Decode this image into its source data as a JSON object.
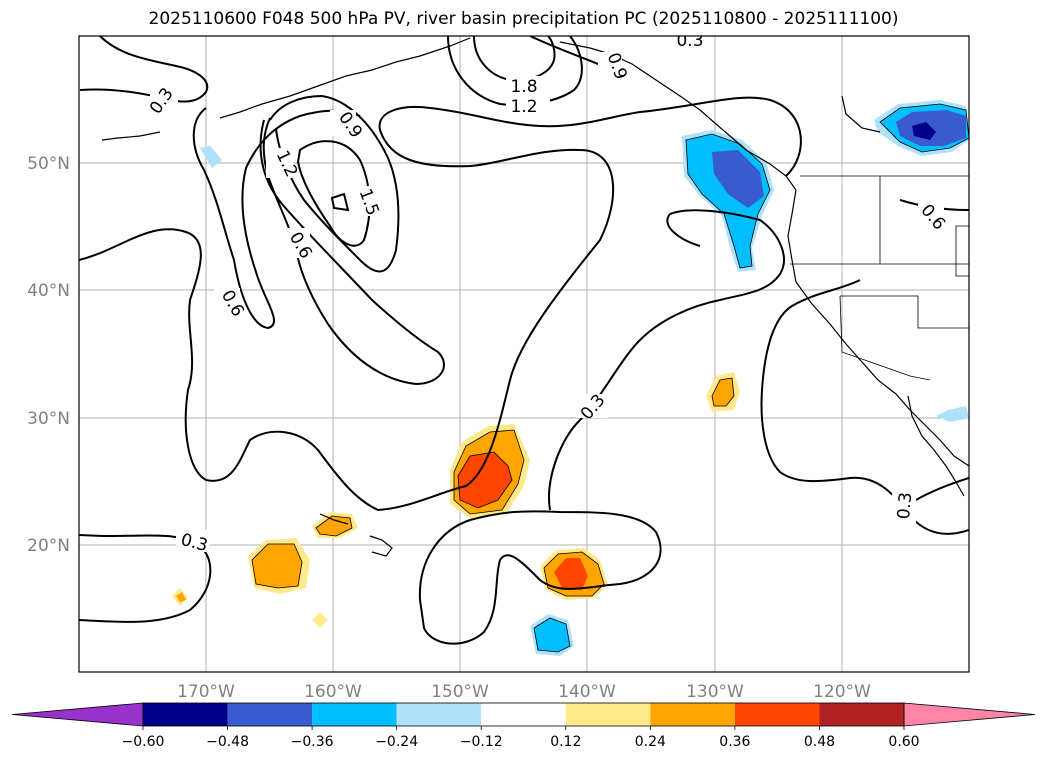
{
  "title": "2025110600 F048 500 hPa PV, river basin precipitation PC (2025110800 - 2025111100)",
  "map": {
    "lon_range": [
      -180,
      -110
    ],
    "lat_range": [
      10,
      60
    ],
    "lon_ticks": [
      "170°W",
      "160°W",
      "150°W",
      "140°W",
      "130°W",
      "120°W"
    ],
    "lat_ticks": [
      "50°N",
      "40°N",
      "30°N",
      "20°N"
    ],
    "grid": true
  },
  "colorbar": {
    "tick_labels": [
      "−0.60",
      "−0.48",
      "−0.36",
      "−0.24",
      "−0.12",
      "0.12",
      "0.24",
      "0.36",
      "0.48",
      "0.60"
    ],
    "colors": [
      "#9932CC",
      "#00008B",
      "#3A5BCF",
      "#00BFFF",
      "#ADE2FA",
      "#FFFFFF",
      "#FFE98A",
      "#FFA500",
      "#FF4500",
      "#B22222",
      "#FF85A6"
    ],
    "extend": "both"
  },
  "contour_labels": [
    "1.8",
    "1.2",
    "0.9",
    "0.3",
    "0.9",
    "0.3",
    "1.2",
    "1.5",
    "0.6",
    "0.6",
    "0.3",
    "0.3",
    "0.3",
    "0.6"
  ]
}
